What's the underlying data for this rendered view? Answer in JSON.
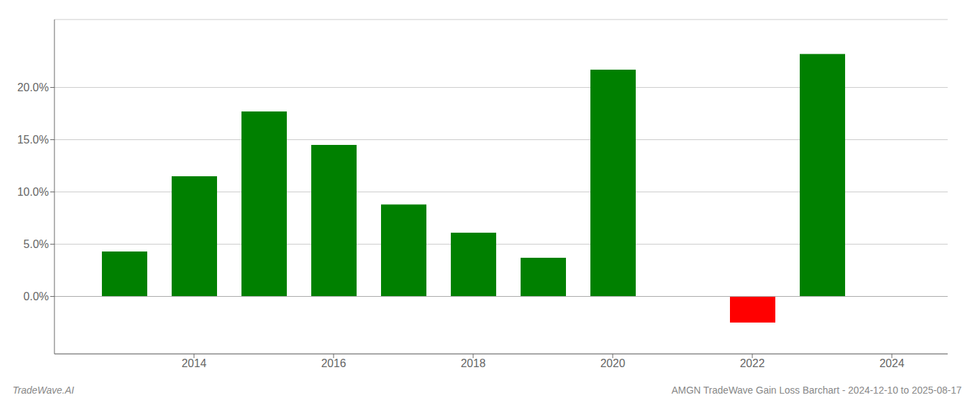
{
  "chart_data": {
    "type": "bar",
    "title": "AMGN TradeWave Gain Loss Barchart - 2024-12-10 to 2025-08-17",
    "annotations": [
      "TradeWave.AI"
    ],
    "x": [
      2013,
      2014,
      2015,
      2016,
      2017,
      2018,
      2019,
      2020,
      2022,
      2023
    ],
    "values": [
      0.043,
      0.115,
      0.177,
      0.145,
      0.088,
      0.061,
      0.037,
      0.217,
      -0.025,
      0.232
    ],
    "colors": [
      "#008000",
      "#008000",
      "#008000",
      "#008000",
      "#008000",
      "#008000",
      "#008000",
      "#008000",
      "#ff0000",
      "#008000"
    ],
    "xlim": [
      2012.0,
      2024.8
    ],
    "xticks": [
      2014,
      2016,
      2018,
      2020,
      2022,
      2024
    ],
    "ylim": [
      -0.055,
      0.265
    ],
    "yticks": [
      {
        "value": 0.0,
        "label": "0.0%"
      },
      {
        "value": 0.05,
        "label": "5.0%"
      },
      {
        "value": 0.1,
        "label": "10.0%"
      },
      {
        "value": 0.15,
        "label": "15.0%"
      },
      {
        "value": 0.2,
        "label": "20.0%"
      }
    ],
    "grid": true
  }
}
